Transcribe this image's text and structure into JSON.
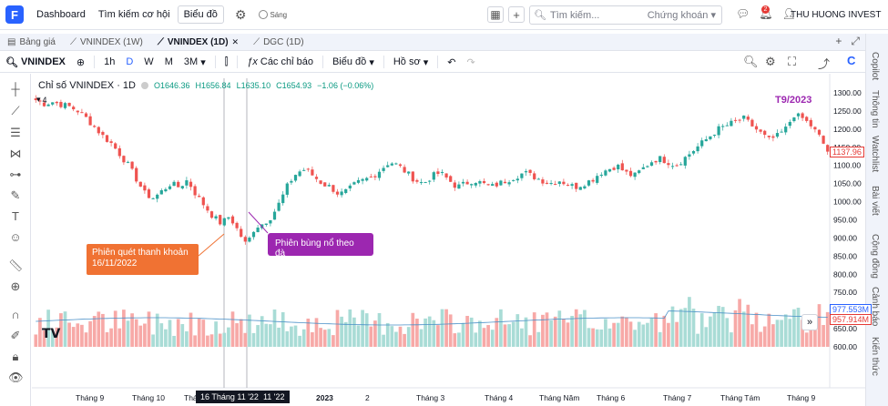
{
  "topnav": {
    "logo": "F",
    "dashboard": "Dashboard",
    "find": "Tìm kiếm cơ hội",
    "chart": "Biểu đồ",
    "theme_toggle": "Sáng",
    "search_placeholder": "Tìm kiếm...",
    "search_category": "Chứng khoán",
    "notif_count": "2",
    "user": "THU HUONG INVEST"
  },
  "tabs": [
    {
      "label": "Bảng giá"
    },
    {
      "label": "VNINDEX (1W)"
    },
    {
      "label": "VNINDEX (1D)"
    },
    {
      "label": "DGC (1D)"
    }
  ],
  "toolbar": {
    "symbol": "VNINDEX",
    "intervals": [
      "1h",
      "D",
      "W",
      "M",
      "3M"
    ],
    "indicators": "Các chỉ báo",
    "chart_type": "Biểu đồ",
    "profile": "Hồ sơ"
  },
  "legend": {
    "title": "Chỉ số VNINDEX · 1D",
    "open": "O1646.36",
    "high": "H1656.84",
    "low": "L1635.10",
    "close": "C1654.93",
    "change": "−1.06 (−0.06%)",
    "counter": "4"
  },
  "annotations": {
    "sweep": "Phiên quét thanh khoản 16/11/2022",
    "breakout": "Phiên bùng nổ theo đà",
    "t9": "T9/2023"
  },
  "crosshair_date": "16 Tháng 11 '22",
  "crosshair_date2": "11 '22",
  "price_tags": {
    "last": "1137.96",
    "vol1": "977.553M",
    "vol2": "957.914M"
  },
  "right_tabs": [
    "Copilot",
    "Thông tin",
    "Watchlist",
    "Bài viết",
    "Cộng đồng",
    "Cảnh báo",
    "Kiến thức"
  ],
  "chart_data": {
    "type": "candlestick",
    "title": "Chỉ số VNINDEX · 1D",
    "y_ticks": [
      1300,
      1250,
      1200,
      1150,
      1100,
      1050,
      1000,
      950,
      900,
      850,
      800,
      750,
      700,
      650,
      600
    ],
    "y_tick_labels": [
      "1300.00",
      "1250.00",
      "1200.00",
      "1150.00",
      "1100.00",
      "1050.00",
      "1000.00",
      "950.00",
      "900.00",
      "850.00",
      "800.00",
      "750.00",
      "700.00",
      "650.00",
      "600.00"
    ],
    "x_labels": [
      "Tháng 9",
      "Tháng 10",
      "Tháng",
      "l",
      "2023",
      "2",
      "Tháng 3",
      "Tháng 4",
      "Tháng Năm",
      "Tháng 6",
      "Tháng 7",
      "Tháng Tám",
      "Tháng 9"
    ],
    "close_path": [
      1280,
      1270,
      1275,
      1268,
      1262,
      1250,
      1230,
      1205,
      1180,
      1160,
      1130,
      1100,
      1060,
      1020,
      1010,
      1030,
      1050,
      1040,
      1060,
      1020,
      990,
      960,
      940,
      960,
      920,
      880,
      930,
      940,
      960,
      1000,
      1050,
      1080,
      1090,
      1070,
      1050,
      1040,
      1020,
      1030,
      1050,
      1060,
      1070,
      1090,
      1110,
      1100,
      1080,
      1060,
      1050,
      1070,
      1080,
      1060,
      1040,
      1050,
      1060,
      1050,
      1040,
      1050,
      1060,
      1070,
      1080,
      1070,
      1060,
      1050,
      1060,
      1050,
      1040,
      1050,
      1060,
      1080,
      1090,
      1100,
      1080,
      1070,
      1090,
      1110,
      1120,
      1110,
      1100,
      1120,
      1140,
      1160,
      1180,
      1200,
      1210,
      1220,
      1230,
      1210,
      1190,
      1170,
      1180,
      1200,
      1240,
      1230,
      1210,
      1180,
      1140
    ],
    "last": 1137.96
  }
}
